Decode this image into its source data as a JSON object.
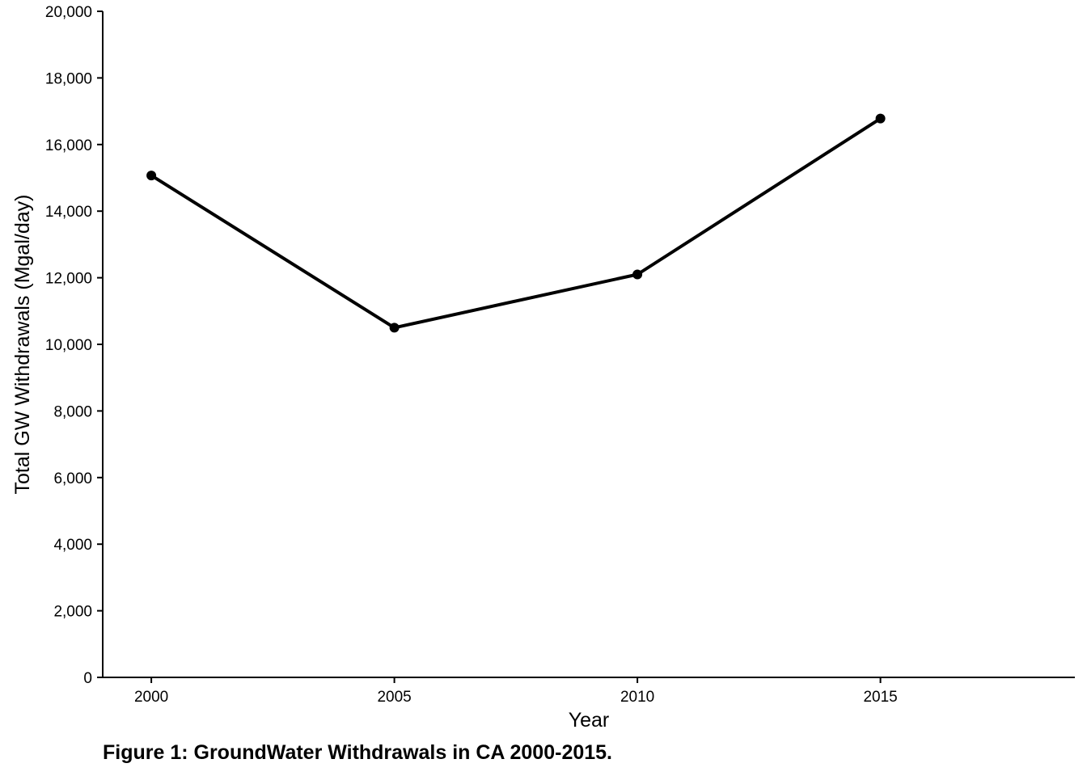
{
  "chart_data": {
    "type": "line",
    "xlabel": "Year",
    "ylabel": "Total GW Withdrawals (Mgal/day)",
    "x": [
      2000,
      2005,
      2010,
      2015
    ],
    "x_tick_labels": [
      "2000",
      "2005",
      "2010",
      "2015"
    ],
    "xlim": [
      1999,
      2019
    ],
    "ylim": [
      0,
      20000
    ],
    "y_ticks": [
      0,
      2000,
      4000,
      6000,
      8000,
      10000,
      12000,
      14000,
      16000,
      18000,
      20000
    ],
    "y_tick_labels": [
      "0",
      "2,000",
      "4,000",
      "6,000",
      "8,000",
      "10,000",
      "12,000",
      "14,000",
      "16,000",
      "18,000",
      "20,000"
    ],
    "series": [
      {
        "values": [
          15070,
          10500,
          12100,
          16780
        ]
      }
    ],
    "line_color": "#000000",
    "grid": false,
    "legend": "none"
  },
  "caption": "Figure 1: GroundWater Withdrawals in CA 2000-2015."
}
